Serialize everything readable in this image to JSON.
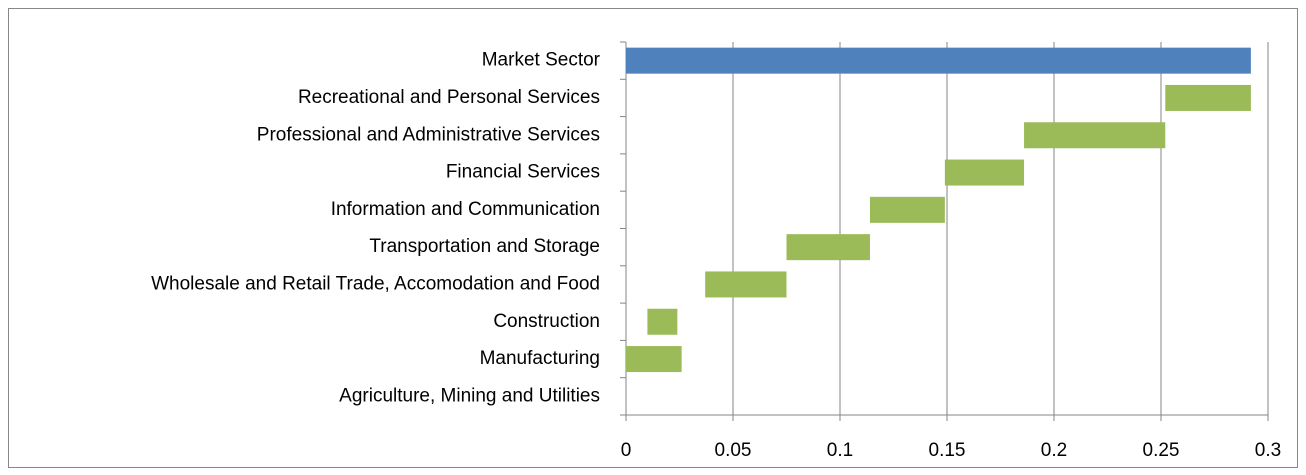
{
  "chart_data": {
    "type": "stacked-bar-horizontal",
    "categories": [
      "Agriculture, Mining and Utilities",
      "Manufacturing",
      "Construction",
      "Wholesale and Retail Trade, Accomodation and Food",
      "Transportation and Storage",
      "Information and Communication",
      "Financial Services",
      "Professional and Administrative Services",
      "Recreational and Personal Services",
      "Market Sector"
    ],
    "series": [
      {
        "color": "none",
        "values": [
          0,
          0,
          0.01,
          0.037,
          0.075,
          0.114,
          0.149,
          0.186,
          0.252,
          0
        ]
      },
      {
        "colors": [
          "#9bbb59",
          "#9bbb59",
          "#9bbb59",
          "#9bbb59",
          "#9bbb59",
          "#9bbb59",
          "#9bbb59",
          "#9bbb59",
          "#9bbb59",
          "#4f81bd"
        ],
        "values": [
          0,
          0.026,
          0.014,
          0.038,
          0.039,
          0.035,
          0.037,
          0.066,
          0.04,
          0.292
        ]
      }
    ],
    "xlim": [
      0,
      0.3
    ],
    "xticks": [
      0,
      0.05,
      0.1,
      0.15,
      0.2,
      0.25,
      0.3
    ],
    "grid": true
  }
}
